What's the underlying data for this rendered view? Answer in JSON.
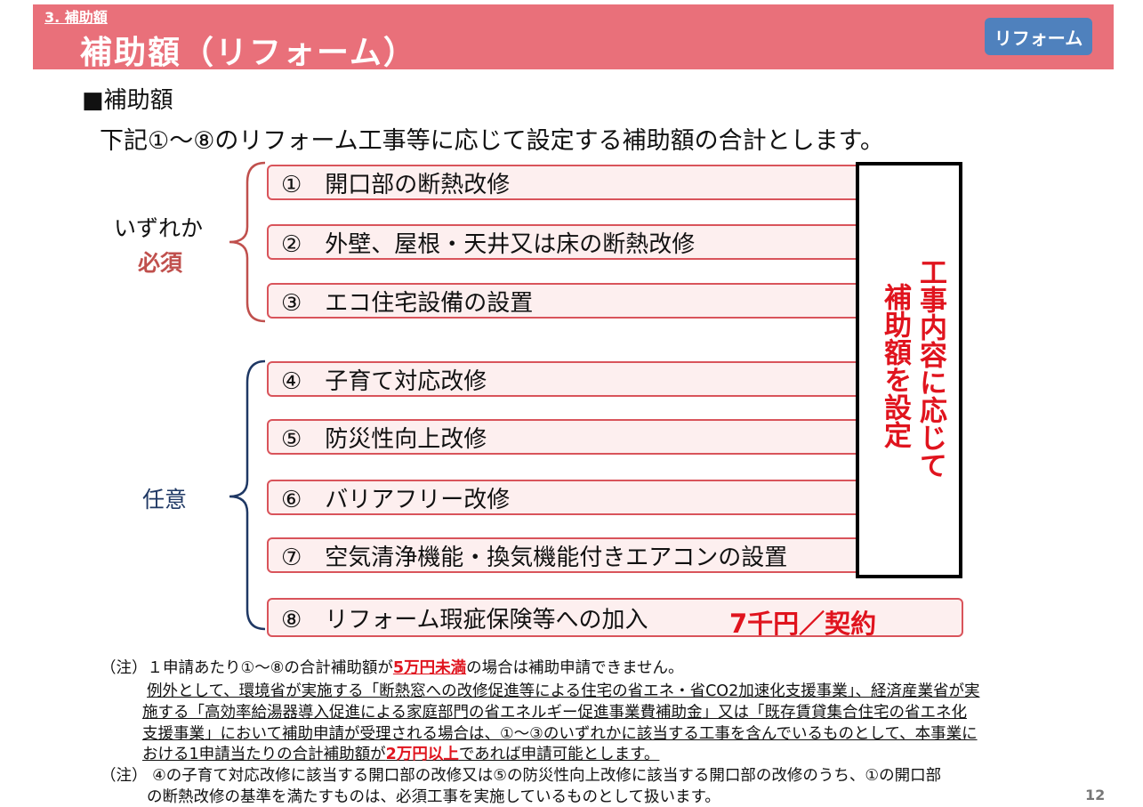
{
  "header": {
    "section": "3. 補助額",
    "title": "補助額（リフォーム）",
    "badge": "リフォーム",
    "color": "#E9707A",
    "badge_color": "#4F81BD"
  },
  "heading": "■補助額",
  "lead": "下記①～⑧のリフォーム工事等に応じて設定する補助額の合計とします。",
  "groups": {
    "required_label1": "いずれか",
    "required_label2": "必須",
    "optional_label": "任意"
  },
  "items": [
    "①　開口部の断熱改修",
    "②　外壁、屋根・天井又は床の断熱改修",
    "③　エコ住宅設備の設置",
    "④　子育て対応改修",
    "⑤　防災性向上改修",
    "⑥　バリアフリー改修",
    "⑦　空気清浄機能・換気機能付きエアコンの設置",
    "⑧　リフォーム瑕疵保険等への加入"
  ],
  "right_box": {
    "col1": "工事内容に応じて",
    "col2": "補助額を設定"
  },
  "item8_price": "7千円／契約",
  "notes": {
    "n1_a": "（注）１申請あたり①～⑧の合計補助額が",
    "n1_red": "5万円未満",
    "n1_b": "の場合は補助申請できません。",
    "n1_l2": "例外として、環境省が実施する「断熱窓への改修促進等による住宅の省エネ・省CO2加速化支援事業」、経済産業省が実",
    "n1_l3": "施する「高効率給湯器導入促進による家庭部門の省エネルギー促進事業費補助金」又は「既存賃貸集合住宅の省エネ化",
    "n1_l4": "支援事業」において補助申請が受理される場合は、①～③のいずれかに該当する工事を含んでいるものとして、本事業に",
    "n1_l5a": "おける1申請当たりの合計補助額が",
    "n1_l5red": "2万円以上",
    "n1_l5b": "であれば申請可能とします。",
    "n2_l1": "（注） ④の子育て対応改修に該当する開口部の改修又は⑤の防災性向上改修に該当する開口部の改修のうち、①の開口部",
    "n2_l2": "の断熱改修の基準を満たすものは、必須工事を実施しているものとして扱います。"
  },
  "page_number": "12"
}
